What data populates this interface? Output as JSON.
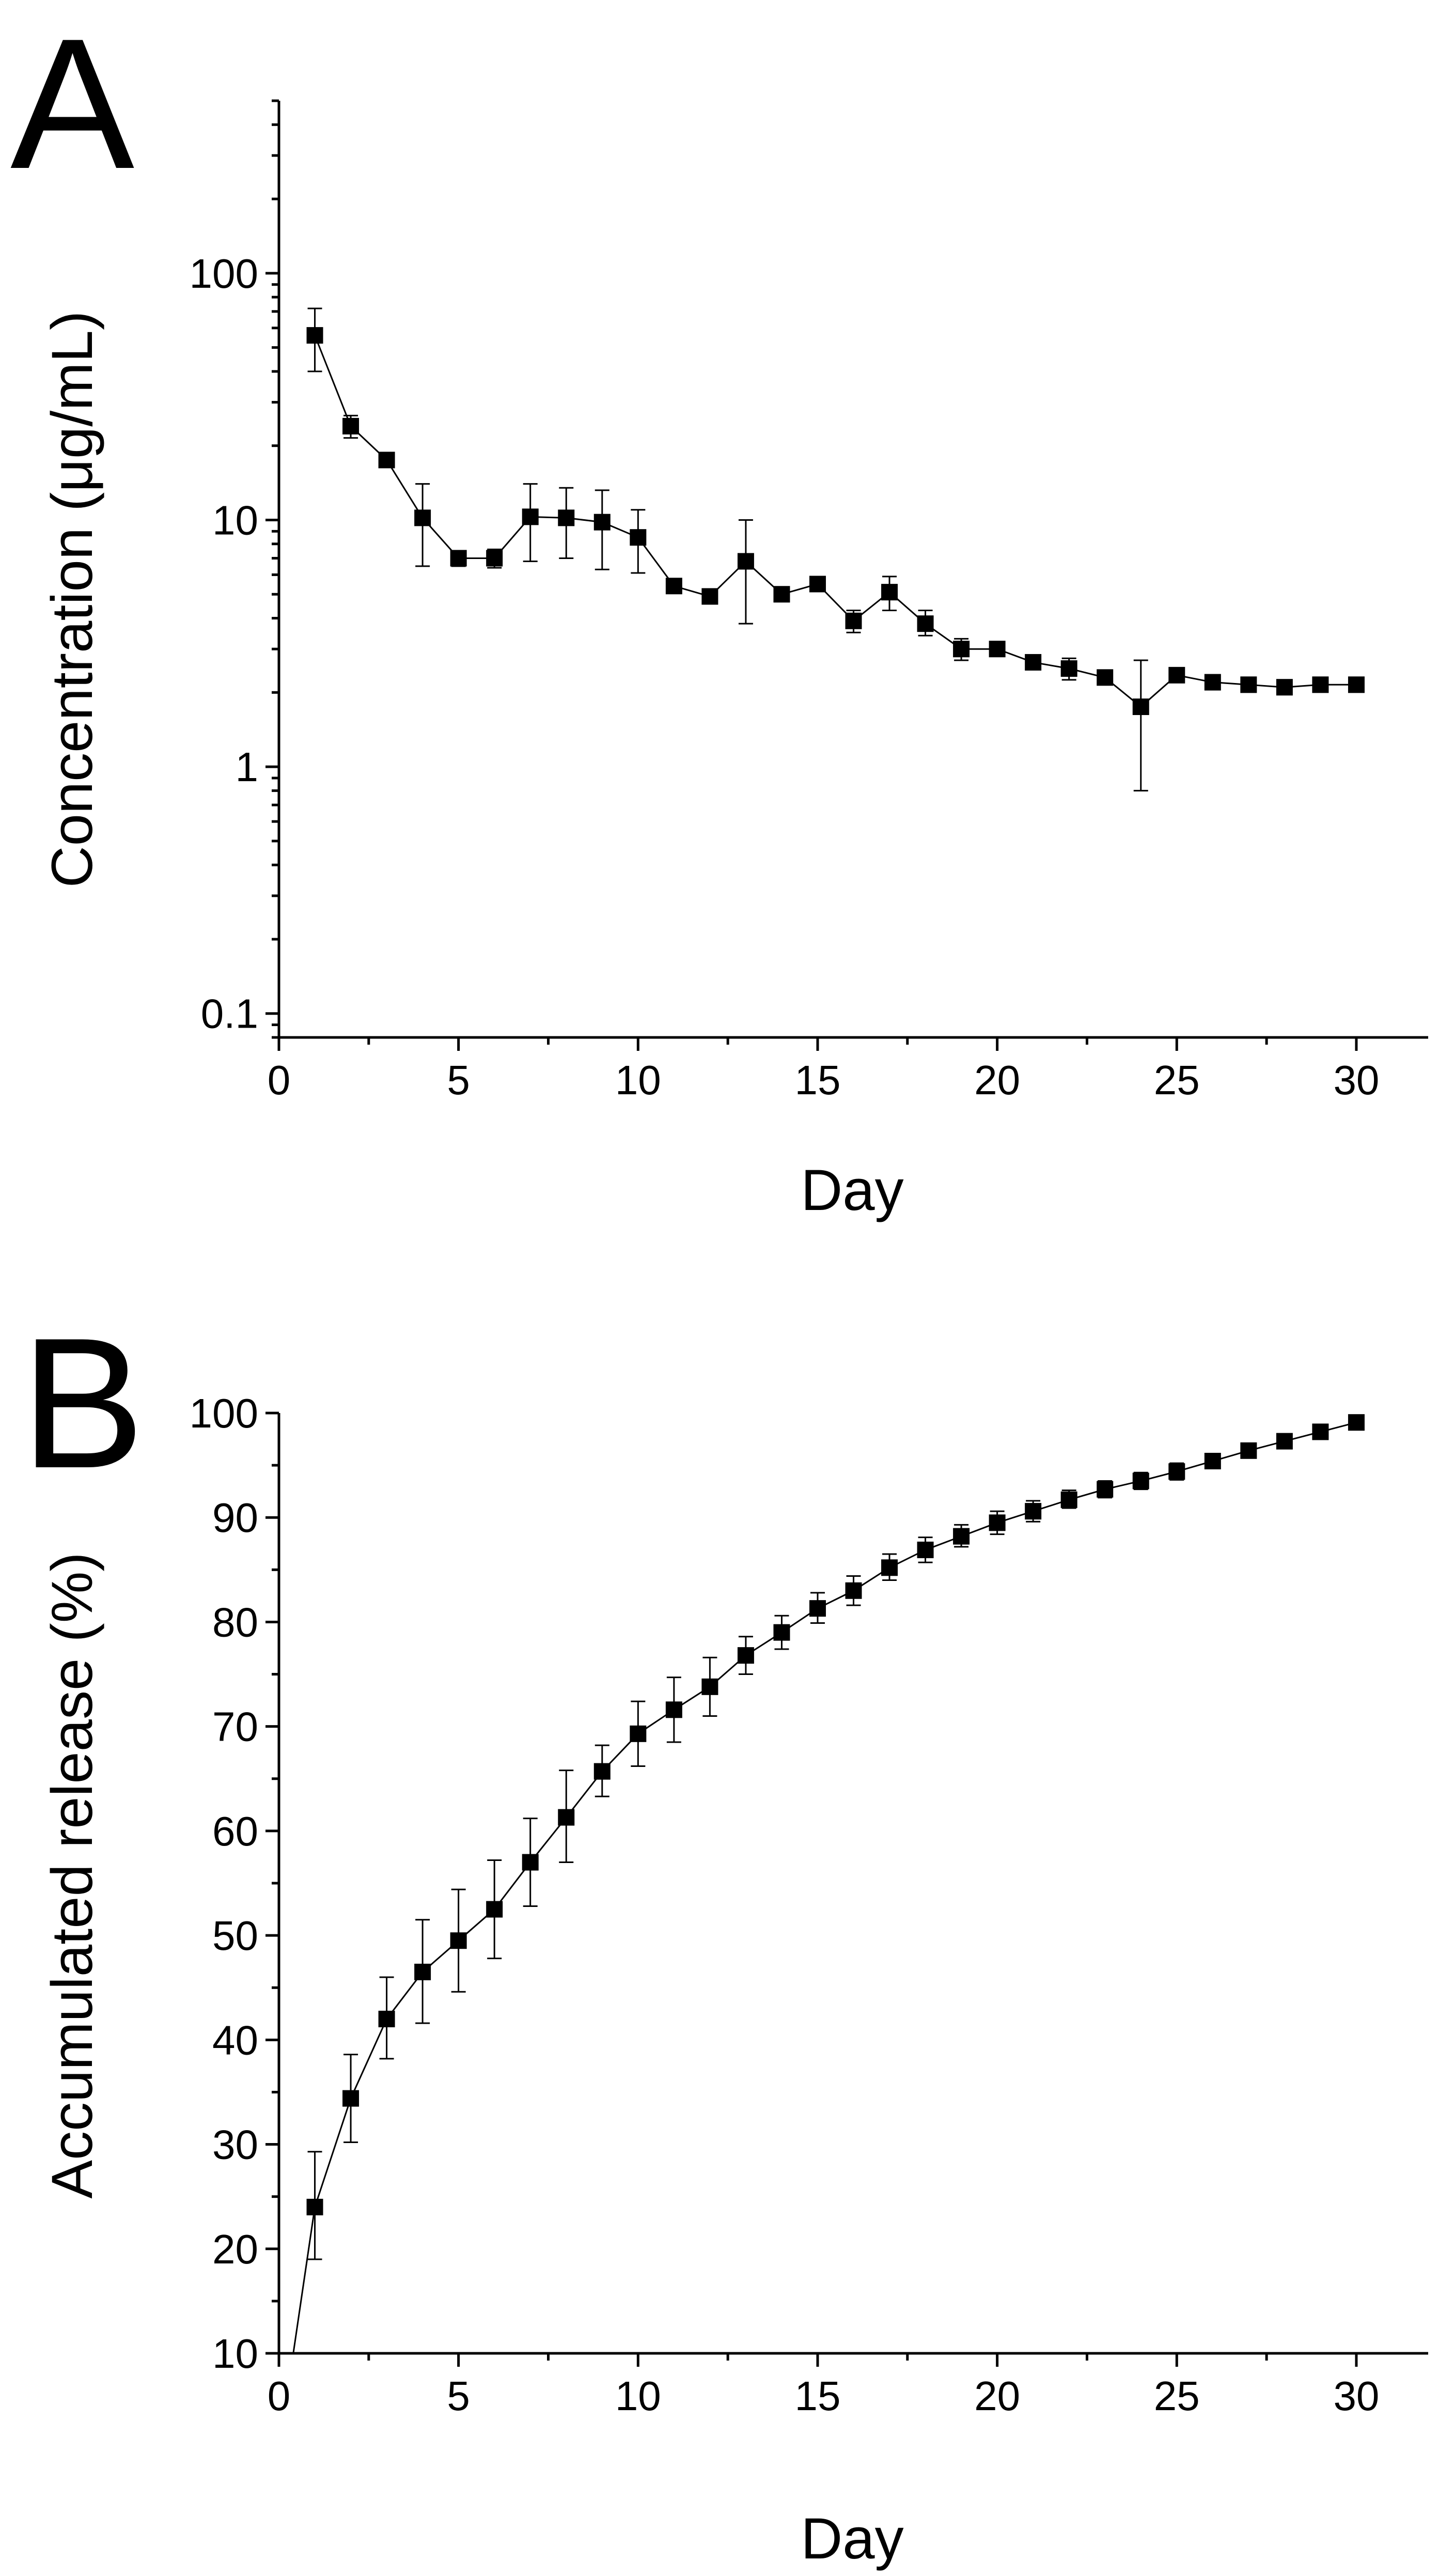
{
  "chart_data": [
    {
      "panel": "A",
      "type": "line",
      "xlabel": "Day",
      "ylabel": "Concentration (μg/mL)",
      "xlim": [
        0,
        32
      ],
      "ylim": [
        0.08,
        500
      ],
      "yscale": "log",
      "grid": false,
      "legend": "none",
      "x_ticks": [
        0,
        5,
        10,
        15,
        20,
        25,
        30
      ],
      "x_tick_labels": [
        "0",
        "5",
        "10",
        "15",
        "20",
        "25",
        "30"
      ],
      "y_ticks": [
        0.1,
        1,
        10,
        100
      ],
      "y_tick_labels": [
        "0.1",
        "1",
        "10",
        "100"
      ],
      "series": [
        {
          "x": [
            1,
            2,
            3,
            4,
            5,
            6,
            7,
            8,
            9,
            10,
            11,
            12,
            13,
            14,
            15,
            16,
            17,
            18,
            19,
            20,
            21,
            22,
            23,
            24,
            25,
            26,
            27,
            28,
            29,
            30
          ],
          "y": [
            56,
            24,
            17.5,
            10.2,
            7.0,
            7.0,
            10.3,
            10.2,
            9.8,
            8.5,
            5.4,
            4.9,
            6.8,
            5.0,
            5.5,
            3.9,
            5.1,
            3.8,
            3.0,
            3.0,
            2.65,
            2.5,
            2.3,
            1.75,
            2.35,
            2.2,
            2.15,
            2.1,
            2.15,
            2.15
          ],
          "err_low": [
            40,
            21.5,
            16.5,
            6.5,
            6.5,
            6.4,
            6.8,
            7.0,
            6.3,
            6.1,
            5.1,
            4.6,
            3.8,
            4.7,
            5.2,
            3.5,
            4.3,
            3.4,
            2.7,
            2.85,
            2.5,
            2.25,
            2.15,
            0.8,
            2.2,
            2.1,
            2.05,
            2.0,
            2.05,
            2.05
          ],
          "err_high": [
            72,
            26.5,
            18.5,
            14,
            7.5,
            7.6,
            14,
            13.5,
            13.2,
            11,
            5.7,
            5.2,
            10,
            5.3,
            5.8,
            4.3,
            5.9,
            4.3,
            3.3,
            3.15,
            2.8,
            2.75,
            2.45,
            2.7,
            2.5,
            2.3,
            2.25,
            2.2,
            2.25,
            2.25
          ]
        }
      ]
    },
    {
      "panel": "B",
      "type": "line",
      "xlabel": "Day",
      "ylabel": "Accumulated release (%)",
      "xlim": [
        0,
        32
      ],
      "ylim": [
        10,
        100
      ],
      "yscale": "linear",
      "grid": false,
      "legend": "none",
      "x_ticks": [
        0,
        5,
        10,
        15,
        20,
        25,
        30
      ],
      "x_tick_labels": [
        "0",
        "5",
        "10",
        "15",
        "20",
        "25",
        "30"
      ],
      "y_ticks": [
        10,
        20,
        30,
        40,
        50,
        60,
        70,
        80,
        90,
        100
      ],
      "y_tick_labels": [
        "10",
        "20",
        "30",
        "40",
        "50",
        "60",
        "70",
        "80",
        "90",
        "100"
      ],
      "series": [
        {
          "line_start": [
            0.4,
            10
          ],
          "x": [
            1,
            2,
            3,
            4,
            5,
            6,
            7,
            8,
            9,
            10,
            11,
            12,
            13,
            14,
            15,
            16,
            17,
            18,
            19,
            20,
            21,
            22,
            23,
            24,
            25,
            26,
            27,
            28,
            29,
            30
          ],
          "y": [
            24,
            34.4,
            42.0,
            46.5,
            49.5,
            52.5,
            57.0,
            61.3,
            65.7,
            69.3,
            71.6,
            73.8,
            76.8,
            79.0,
            81.3,
            83.0,
            85.2,
            86.9,
            88.2,
            89.5,
            90.6,
            91.7,
            92.7,
            93.5,
            94.4,
            95.4,
            96.4,
            97.3,
            98.2,
            99.1
          ],
          "err_low": [
            19,
            30.2,
            38.2,
            41.6,
            44.6,
            47.8,
            52.8,
            57.0,
            63.3,
            66.2,
            68.5,
            71.0,
            75.0,
            77.4,
            79.9,
            81.6,
            84.0,
            85.7,
            87.2,
            88.4,
            89.6,
            90.9,
            91.9,
            92.7,
            93.6,
            94.9,
            96.0,
            97.0,
            98.0,
            98.9
          ],
          "err_high": [
            29.3,
            38.6,
            46.0,
            51.5,
            54.4,
            57.2,
            61.2,
            65.8,
            68.2,
            72.4,
            74.7,
            76.6,
            78.6,
            80.6,
            82.8,
            84.4,
            86.5,
            88.1,
            89.3,
            90.6,
            91.6,
            92.6,
            93.5,
            94.3,
            95.2,
            95.9,
            96.8,
            97.6,
            98.4,
            99.3
          ]
        }
      ]
    }
  ]
}
